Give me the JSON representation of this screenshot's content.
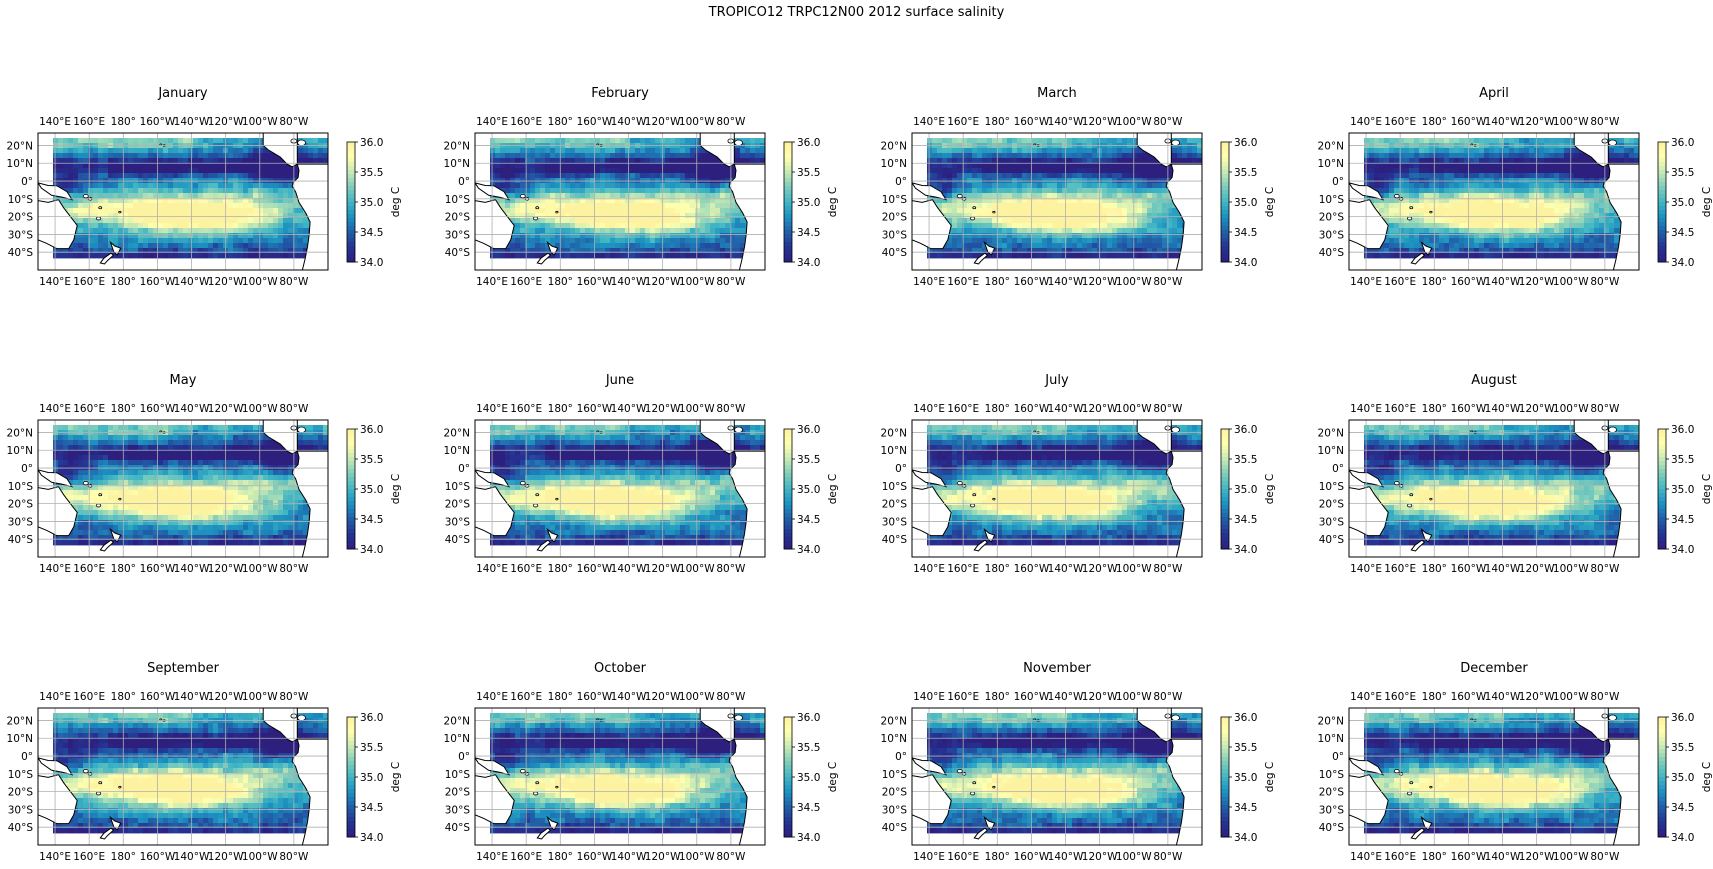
{
  "figure": {
    "title": "TROPICO12 TRPC12N00 2012 surface salinity"
  },
  "panels": [
    {
      "title": "January"
    },
    {
      "title": "February"
    },
    {
      "title": "March"
    },
    {
      "title": "April"
    },
    {
      "title": "May"
    },
    {
      "title": "June"
    },
    {
      "title": "July"
    },
    {
      "title": "August"
    },
    {
      "title": "September"
    },
    {
      "title": "October"
    },
    {
      "title": "November"
    },
    {
      "title": "December"
    }
  ],
  "map": {
    "lon_ticks": [
      "140°E",
      "160°E",
      "180°",
      "160°W",
      "140°W",
      "120°W",
      "100°W",
      "80°W"
    ],
    "lon_values": [
      140,
      160,
      180,
      200,
      220,
      240,
      260,
      280
    ],
    "lat_ticks": [
      "20°N",
      "10°N",
      "0°",
      "10°S",
      "20°S",
      "30°S",
      "40°S"
    ],
    "lat_values": [
      20,
      10,
      0,
      -10,
      -20,
      -30,
      -40
    ],
    "lon_range": [
      130,
      300
    ],
    "lat_range": [
      -50,
      27
    ],
    "grid": true
  },
  "colorbar": {
    "label": "deg C",
    "ticks": [
      "36.0",
      "35.5",
      "35.0",
      "34.5",
      "34.0"
    ],
    "range": [
      34.0,
      36.0
    ],
    "colormap": "YlGnBu_r",
    "colors": [
      "#2c1f7e",
      "#253494",
      "#225ea8",
      "#1d91c0",
      "#41b6c4",
      "#7fcdbb",
      "#c7e9b4",
      "#ffffb0",
      "#fdf2a0"
    ]
  },
  "colors": {
    "land": "#ffffff",
    "coast": "#000000",
    "grid": "#b0b0b0"
  }
}
